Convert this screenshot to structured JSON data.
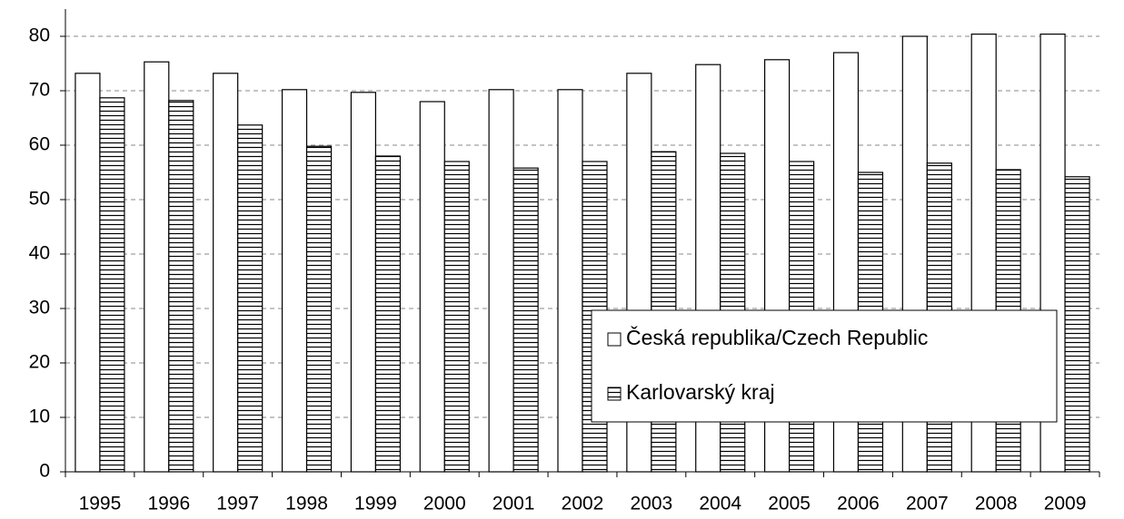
{
  "chart_data": {
    "type": "bar",
    "categories": [
      "1995",
      "1996",
      "1997",
      "1998",
      "1999",
      "2000",
      "2001",
      "2002",
      "2003",
      "2004",
      "2005",
      "2006",
      "2007",
      "2008",
      "2009"
    ],
    "series": [
      {
        "name": "Česká republika/Czech Republic",
        "color": "#ffffff",
        "values": [
          73.2,
          75.3,
          73.2,
          70.2,
          69.7,
          68.0,
          70.2,
          70.2,
          73.2,
          74.8,
          75.7,
          77.0,
          80.0,
          80.4,
          80.4
        ]
      },
      {
        "name": "Karlovarský kraj",
        "color": "#ffffff",
        "hatch": "horizontal",
        "values": [
          68.7,
          68.2,
          63.7,
          59.8,
          58.0,
          57.0,
          55.8,
          57.0,
          58.8,
          58.5,
          57.0,
          55.0,
          56.7,
          55.5,
          54.2
        ]
      }
    ],
    "ylim": [
      0,
      85
    ],
    "yticks": [
      0,
      10,
      20,
      30,
      40,
      50,
      60,
      70,
      80
    ],
    "grid": true,
    "legend": "lower right"
  }
}
